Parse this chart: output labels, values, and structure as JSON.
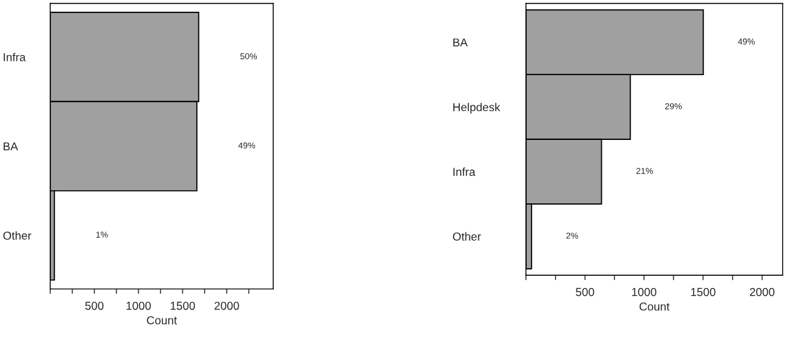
{
  "chart_data": [
    {
      "type": "bar",
      "orientation": "horizontal",
      "xlabel": "Count",
      "categories": [
        "Infra",
        "BA",
        "Other"
      ],
      "series": [
        {
          "color": "#a0a0a0",
          "values": [
            1682,
            1661,
            47
          ]
        }
      ],
      "xlim": [
        0,
        2526
      ],
      "xticks": [
        {
          "value": 0,
          "label": null
        },
        {
          "value": 250,
          "label": null
        },
        500,
        {
          "value": 750,
          "label": null
        },
        1000,
        {
          "value": 1250,
          "label": null
        },
        1500,
        {
          "value": 1750,
          "label": null
        },
        2000,
        {
          "value": 2250,
          "label": null
        }
      ],
      "grid": false,
      "annotations": [
        "50%",
        "49%",
        "1%"
      ]
    },
    {
      "type": "bar",
      "orientation": "horizontal",
      "xlabel": "Count",
      "categories": [
        "BA",
        "Helpdesk",
        "Infra",
        "Other"
      ],
      "series": [
        {
          "color": "#a0a0a0",
          "values": [
            1502,
            884,
            640,
            47
          ]
        }
      ],
      "xlim": [
        0,
        2174
      ],
      "xticks": [
        {
          "value": 0,
          "label": null
        },
        {
          "value": 250,
          "label": null
        },
        500,
        {
          "value": 750,
          "label": null
        },
        1000,
        {
          "value": 1250,
          "label": null
        },
        1500,
        {
          "value": 1750,
          "label": null
        },
        2000
      ],
      "grid": false,
      "annotations": [
        "49%",
        "29%",
        "21%",
        "2%"
      ]
    }
  ]
}
